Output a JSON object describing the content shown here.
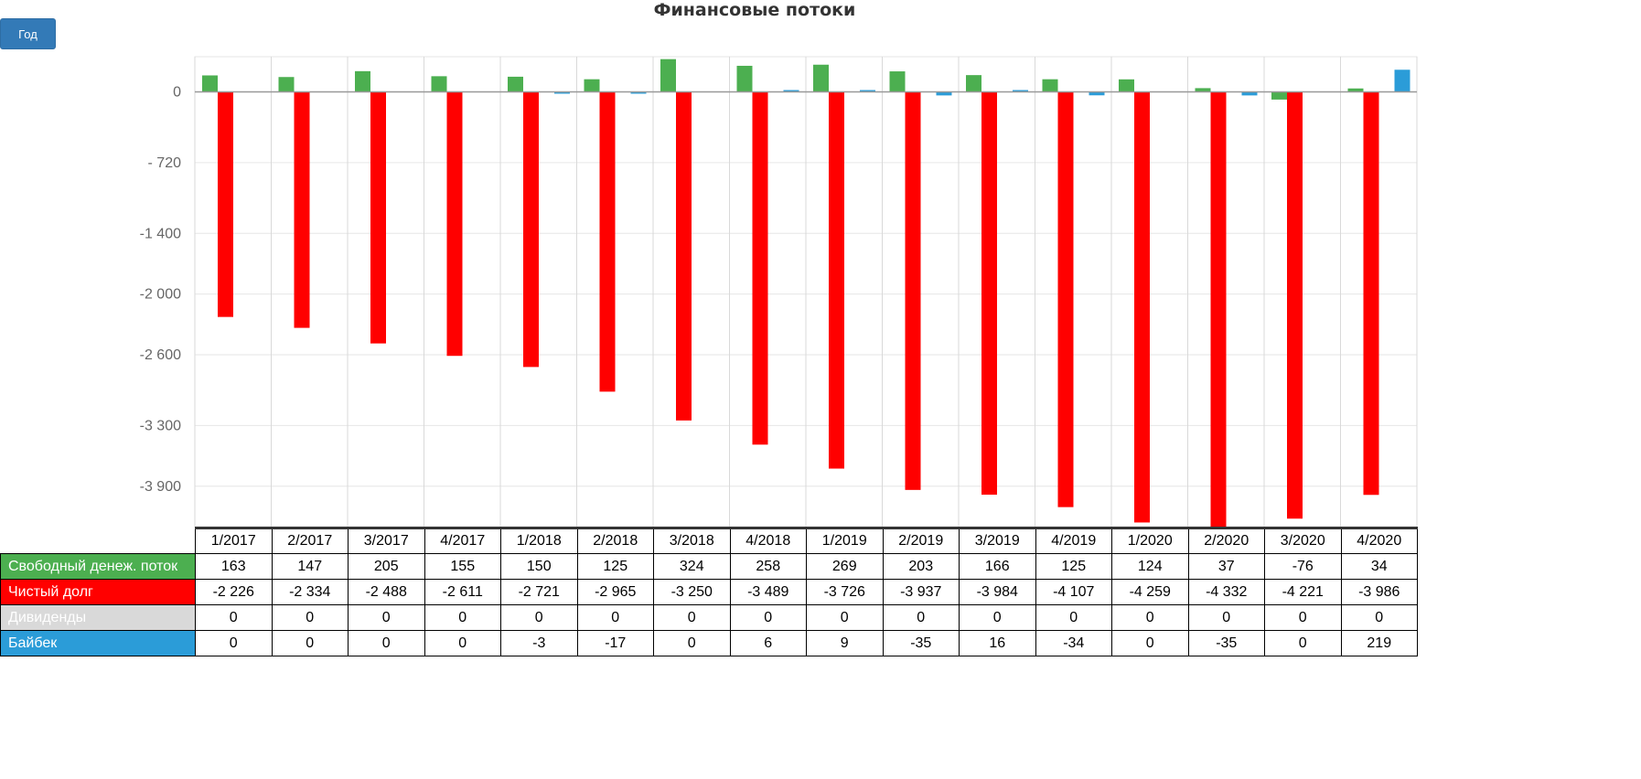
{
  "title": "Финансовые потоки",
  "period_button": "Год",
  "colors": {
    "fcf": "#4caf50",
    "net_debt": "#ff0000",
    "dividends": "#d9d9d9",
    "buyback": "#2b9cd8"
  },
  "chart_data": {
    "type": "bar",
    "title": "Финансовые потоки",
    "categories": [
      "1/2017",
      "2/2017",
      "3/2017",
      "4/2017",
      "1/2018",
      "2/2018",
      "3/2018",
      "4/2018",
      "1/2019",
      "2/2019",
      "3/2019",
      "4/2019",
      "1/2020",
      "2/2020",
      "3/2020",
      "4/2020"
    ],
    "y_ticks": [
      "0",
      "- 720",
      "-1 400",
      "-2 000",
      "-2 600",
      "-3 300",
      "-3 900"
    ],
    "ylim": [
      -4340,
      330
    ],
    "grid": true,
    "series": [
      {
        "name": "Свободный денеж. поток",
        "key": "fcf",
        "values": [
          163,
          147,
          205,
          155,
          150,
          125,
          324,
          258,
          269,
          203,
          166,
          125,
          124,
          37,
          -76,
          34
        ]
      },
      {
        "name": "Чистый долг",
        "key": "net_debt",
        "values": [
          -2226,
          -2334,
          -2488,
          -2611,
          -2721,
          -2965,
          -3250,
          -3489,
          -3726,
          -3937,
          -3984,
          -4107,
          -4259,
          -4332,
          -4221,
          -3986
        ]
      },
      {
        "name": "Дивиденды",
        "key": "dividends",
        "values": [
          0,
          0,
          0,
          0,
          0,
          0,
          0,
          0,
          0,
          0,
          0,
          0,
          0,
          0,
          0,
          0
        ]
      },
      {
        "name": "Байбек",
        "key": "buyback",
        "values": [
          0,
          0,
          0,
          0,
          -3,
          -17,
          0,
          6,
          9,
          -35,
          16,
          -34,
          0,
          -35,
          0,
          219
        ]
      }
    ]
  },
  "table": {
    "rows": [
      {
        "label": "Свободный денеж. поток",
        "cells": [
          "163",
          "147",
          "205",
          "155",
          "150",
          "125",
          "324",
          "258",
          "269",
          "203",
          "166",
          "125",
          "124",
          "37",
          "-76",
          "34"
        ]
      },
      {
        "label": "Чистый долг",
        "cells": [
          "-2 226",
          "-2 334",
          "-2 488",
          "-2 611",
          "-2 721",
          "-2 965",
          "-3 250",
          "-3 489",
          "-3 726",
          "-3 937",
          "-3 984",
          "-4 107",
          "-4 259",
          "-4 332",
          "-4 221",
          "-3 986"
        ]
      },
      {
        "label": "Дивиденды",
        "cells": [
          "0",
          "0",
          "0",
          "0",
          "0",
          "0",
          "0",
          "0",
          "0",
          "0",
          "0",
          "0",
          "0",
          "0",
          "0",
          "0"
        ]
      },
      {
        "label": "Байбек",
        "cells": [
          "0",
          "0",
          "0",
          "0",
          "-3",
          "-17",
          "0",
          "6",
          "9",
          "-35",
          "16",
          "-34",
          "0",
          "-35",
          "0",
          "219"
        ]
      }
    ]
  }
}
